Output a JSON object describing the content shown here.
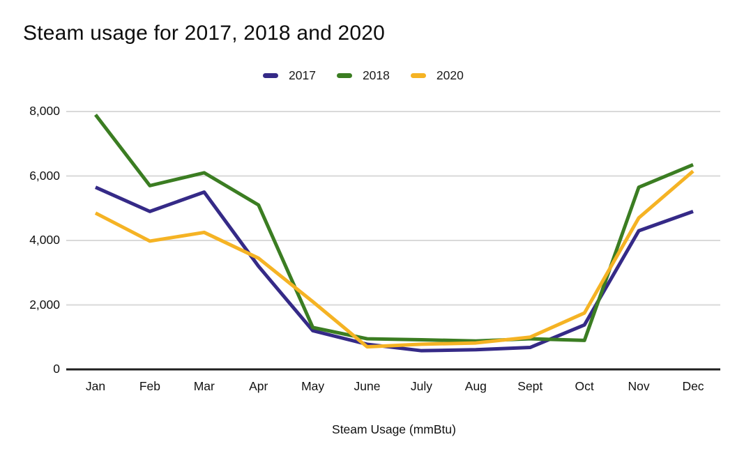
{
  "chart_data": {
    "type": "line",
    "title": "Steam usage for 2017, 2018 and 2020",
    "xlabel": "Steam Usage (mmBtu)",
    "ylabel": "",
    "ylim": [
      0,
      8000
    ],
    "grid": true,
    "legend_position": "top-center",
    "categories": [
      "Jan",
      "Feb",
      "Mar",
      "Apr",
      "May",
      "June",
      "July",
      "Aug",
      "Sept",
      "Oct",
      "Nov",
      "Dec"
    ],
    "y_ticks": [
      {
        "label": "0",
        "value": 0
      },
      {
        "label": "2,000",
        "value": 2000
      },
      {
        "label": "4,000",
        "value": 4000
      },
      {
        "label": "6,000",
        "value": 6000
      },
      {
        "label": "8,000",
        "value": 8000
      }
    ],
    "series": [
      {
        "name": "2017",
        "color": "#352a87",
        "values": [
          5650,
          4900,
          5500,
          3200,
          1200,
          780,
          580,
          610,
          680,
          1380,
          4300,
          4900
        ]
      },
      {
        "name": "2018",
        "color": "#3b7d22",
        "values": [
          7900,
          5700,
          6100,
          5100,
          1300,
          950,
          920,
          880,
          950,
          900,
          5650,
          6350
        ]
      },
      {
        "name": "2020",
        "color": "#f5b324",
        "values": [
          4850,
          3980,
          4250,
          3450,
          2100,
          700,
          780,
          820,
          1000,
          1750,
          4700,
          6150
        ]
      }
    ],
    "style": {
      "gridline_color": "#d9d9d9",
      "axis_line_color": "#1f1f1f"
    }
  }
}
